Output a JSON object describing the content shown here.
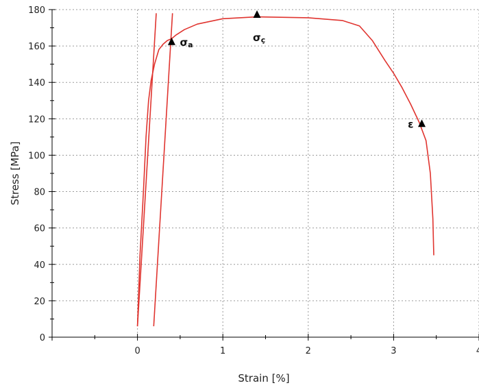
{
  "chart_data": {
    "type": "line",
    "xlabel": "Strain [%]",
    "ylabel": "Stress [MPa]",
    "xlim": [
      -1,
      4
    ],
    "ylim": [
      0,
      180
    ],
    "x_ticks": [
      0,
      1,
      2,
      3,
      4
    ],
    "y_ticks": [
      0,
      20,
      40,
      60,
      80,
      100,
      120,
      140,
      160,
      180
    ],
    "grid": true,
    "colors": {
      "series": "#e0342f",
      "grid": "#9a9a9a",
      "axis": "#000000",
      "marker": "#000000"
    },
    "series": [
      {
        "x": [
          0.0,
          0.03,
          0.07,
          0.1,
          0.13,
          0.16,
          0.2,
          0.25,
          0.3,
          0.35,
          0.4,
          0.45,
          0.55,
          0.7,
          1.0,
          1.4,
          2.0,
          2.4,
          2.6,
          2.75,
          2.9,
          3.0,
          3.1,
          3.2,
          3.3,
          3.38,
          3.43,
          3.46,
          3.47
        ],
        "values": [
          6,
          45,
          80,
          110,
          130,
          141,
          150,
          158,
          161,
          163,
          164,
          166,
          169,
          172,
          175,
          176,
          175.5,
          174,
          171,
          163,
          152,
          145,
          137,
          128,
          118,
          108,
          90,
          65,
          45
        ]
      },
      {
        "x": [
          0.0,
          0.22
        ],
        "values": [
          6,
          178
        ]
      },
      {
        "x": [
          0.19,
          0.41
        ],
        "values": [
          6,
          178
        ]
      }
    ],
    "annotations": [
      {
        "label": "σ",
        "sub": "a",
        "x": 0.4,
        "y": 162
      },
      {
        "label": "σ",
        "sub": "ç",
        "x": 1.4,
        "y": 177
      },
      {
        "label": "ε",
        "sub": "",
        "x": 3.33,
        "y": 117
      }
    ]
  }
}
